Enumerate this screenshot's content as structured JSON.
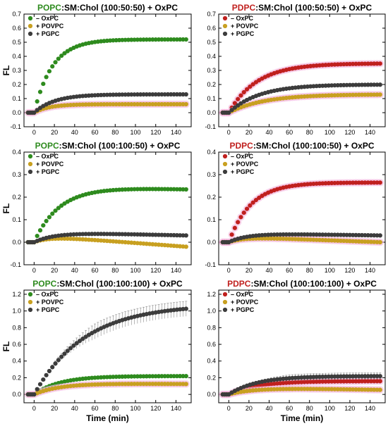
{
  "colors": {
    "green": "#2e8b1e",
    "red": "#c0201e",
    "gold": "#c8a020",
    "dark": "#3c3c3c",
    "pink_halo": "#f3b8dd"
  },
  "labels": {
    "y": "FL",
    "x": "Time (min)"
  },
  "chart_data": [
    {
      "type": "scatter",
      "title_lipid": "POPC",
      "title_rest": ":SM:Chol (100:50:50) + OxPC",
      "lipid_color": "#2e8b1e",
      "xlim": [
        -10,
        155
      ],
      "ylim": [
        -0.1,
        0.7
      ],
      "yticks": [
        "-0.1",
        "0.0",
        "0.1",
        "0.2",
        "0.3",
        "0.4",
        "0.5",
        "0.6",
        "0.7"
      ],
      "xticks": [
        "0",
        "20",
        "40",
        "60",
        "80",
        "100",
        "120",
        "140"
      ],
      "legend": [
        "– OxPC",
        "+ POVPC",
        "+ PGPC"
      ],
      "series": [
        {
          "name": "– OxPC",
          "color": "#2e8b1e",
          "halo": false,
          "error": 0,
          "shape": {
            "baseline": 0.0,
            "plateau": 0.52,
            "tau": 18,
            "form": "rise"
          }
        },
        {
          "name": "+ POVPC",
          "color": "#c8a020",
          "halo": true,
          "error": 0,
          "shape": {
            "baseline": 0.0,
            "plateau": 0.06,
            "tau": 15,
            "form": "rise"
          }
        },
        {
          "name": "+ PGPC",
          "color": "#3c3c3c",
          "halo": false,
          "error": 0,
          "shape": {
            "baseline": 0.0,
            "plateau": 0.13,
            "tau": 20,
            "form": "rise"
          }
        }
      ]
    },
    {
      "type": "scatter",
      "title_lipid": "PDPC",
      "title_rest": ":SM:Chol (100:50:50) + OxPC",
      "lipid_color": "#c0201e",
      "xlim": [
        -10,
        155
      ],
      "ylim": [
        -0.1,
        0.7
      ],
      "yticks": [
        "-0.1",
        "0.0",
        "0.1",
        "0.2",
        "0.3",
        "0.4",
        "0.5",
        "0.6",
        "0.7"
      ],
      "xticks": [
        "0",
        "20",
        "40",
        "60",
        "80",
        "100",
        "120",
        "140"
      ],
      "legend": [
        "– OxPC",
        "+ POVPC",
        "+ PGPC"
      ],
      "series": [
        {
          "name": "– OxPC",
          "color": "#c0201e",
          "halo": true,
          "error": 0,
          "shape": {
            "baseline": 0.0,
            "plateau": 0.35,
            "tau": 28,
            "form": "rise"
          }
        },
        {
          "name": "+ POVPC",
          "color": "#c8a020",
          "halo": true,
          "error": 0,
          "shape": {
            "baseline": 0.0,
            "plateau": 0.13,
            "tau": 35,
            "form": "rise"
          }
        },
        {
          "name": "+ PGPC",
          "color": "#3c3c3c",
          "halo": false,
          "error": 0,
          "shape": {
            "baseline": 0.0,
            "plateau": 0.2,
            "tau": 30,
            "form": "rise"
          }
        }
      ]
    },
    {
      "type": "scatter",
      "title_lipid": "POPC",
      "title_rest": ":SM:Chol (100:100:50) + OxPC",
      "lipid_color": "#2e8b1e",
      "xlim": [
        -10,
        155
      ],
      "ylim": [
        -0.1,
        0.4
      ],
      "yticks": [
        "-0.1",
        "0.0",
        "0.1",
        "0.2",
        "0.3",
        "0.4"
      ],
      "xticks": [
        "0",
        "20",
        "40",
        "60",
        "80",
        "100",
        "120",
        "140"
      ],
      "legend": [
        "– OxPC",
        "+ POVPC",
        "+ PGPC"
      ],
      "series": [
        {
          "name": "– OxPC",
          "color": "#2e8b1e",
          "halo": false,
          "error": 0,
          "shape": {
            "baseline": 0.0,
            "plateau": 0.25,
            "tau": 25,
            "form": "riseDecay",
            "decay": 0.015
          }
        },
        {
          "name": "+ POVPC",
          "color": "#c8a020",
          "halo": false,
          "error": 0,
          "shape": {
            "baseline": 0.0,
            "plateau": 0.03,
            "tau": 15,
            "form": "riseDecay",
            "decay": 0.05
          }
        },
        {
          "name": "+ PGPC",
          "color": "#3c3c3c",
          "halo": false,
          "error": 0,
          "shape": {
            "baseline": 0.0,
            "plateau": 0.045,
            "tau": 20,
            "form": "riseDecay",
            "decay": 0.015
          }
        }
      ]
    },
    {
      "type": "scatter",
      "title_lipid": "PDPC",
      "title_rest": ":SM:Chol (100:100:50) + OxPC",
      "lipid_color": "#c0201e",
      "xlim": [
        -10,
        155
      ],
      "ylim": [
        -0.1,
        0.4
      ],
      "yticks": [
        "-0.1",
        "0.0",
        "0.1",
        "0.2",
        "0.3",
        "0.4"
      ],
      "xticks": [
        "0",
        "20",
        "40",
        "60",
        "80",
        "100",
        "120",
        "140"
      ],
      "legend": [
        "– OxPC",
        "+ POVPC",
        "+ PGPC"
      ],
      "series": [
        {
          "name": "– OxPC",
          "color": "#c0201e",
          "halo": true,
          "error": 0,
          "shape": {
            "baseline": 0.0,
            "plateau": 0.265,
            "tau": 22,
            "form": "rise"
          }
        },
        {
          "name": "+ POVPC",
          "color": "#c8a020",
          "halo": true,
          "error": 0,
          "shape": {
            "baseline": 0.0,
            "plateau": 0.025,
            "tau": 15,
            "form": "riseDecay",
            "decay": 0.025
          }
        },
        {
          "name": "+ PGPC",
          "color": "#3c3c3c",
          "halo": false,
          "error": 0,
          "shape": {
            "baseline": 0.0,
            "plateau": 0.04,
            "tau": 18,
            "form": "riseDecay",
            "decay": 0.01
          }
        }
      ]
    },
    {
      "type": "scatter",
      "title_lipid": "POPC",
      "title_rest": ":SM:Chol (100:100:100) + OxPC",
      "lipid_color": "#2e8b1e",
      "xlim": [
        -10,
        155
      ],
      "ylim": [
        -0.1,
        1.25
      ],
      "yticks": [
        "0.0",
        "0.2",
        "0.4",
        "0.6",
        "0.8",
        "1.0",
        "1.2"
      ],
      "xticks": [
        "0",
        "20",
        "40",
        "60",
        "80",
        "100",
        "120",
        "140"
      ],
      "legend": [
        "– OxPC",
        "+ POVPC",
        "+ PGPC"
      ],
      "series": [
        {
          "name": "– OxPC",
          "color": "#2e8b1e",
          "halo": false,
          "error": 0.01,
          "shape": {
            "baseline": 0.0,
            "plateau": 0.22,
            "tau": 25,
            "form": "rise"
          }
        },
        {
          "name": "+ POVPC",
          "color": "#c8a020",
          "halo": true,
          "error": 0,
          "shape": {
            "baseline": 0.0,
            "plateau": 0.135,
            "tau": 25,
            "form": "riseDecay",
            "decay": 0.01
          }
        },
        {
          "name": "+ PGPC",
          "color": "#3c3c3c",
          "halo": false,
          "error": 0.09,
          "shape": {
            "baseline": 0.0,
            "plateau": 1.08,
            "tau": 50,
            "form": "rise"
          }
        }
      ]
    },
    {
      "type": "scatter",
      "title_lipid": "PDPC",
      "title_rest": ":SM:Chol (100:100:100) + OxPC",
      "lipid_color": "#c0201e",
      "xlim": [
        -10,
        155
      ],
      "ylim": [
        -0.1,
        1.25
      ],
      "yticks": [
        "0.0",
        "0.2",
        "0.4",
        "0.6",
        "0.8",
        "1.0",
        "1.2"
      ],
      "xticks": [
        "0",
        "20",
        "40",
        "60",
        "80",
        "100",
        "120",
        "140"
      ],
      "legend": [
        "– OxPC",
        "+ POVPC",
        "+ PGPC"
      ],
      "series": [
        {
          "name": "– OxPC",
          "color": "#c0201e",
          "halo": true,
          "error": 0.03,
          "shape": {
            "baseline": 0.0,
            "plateau": 0.16,
            "tau": 28,
            "form": "rise"
          }
        },
        {
          "name": "+ POVPC",
          "color": "#c8a020",
          "halo": true,
          "error": 0.015,
          "shape": {
            "baseline": 0.0,
            "plateau": 0.085,
            "tau": 25,
            "form": "riseDecay",
            "decay": 0.03
          }
        },
        {
          "name": "+ PGPC",
          "color": "#3c3c3c",
          "halo": false,
          "error": 0.04,
          "shape": {
            "baseline": 0.0,
            "plateau": 0.22,
            "tau": 28,
            "form": "rise"
          }
        }
      ]
    }
  ]
}
